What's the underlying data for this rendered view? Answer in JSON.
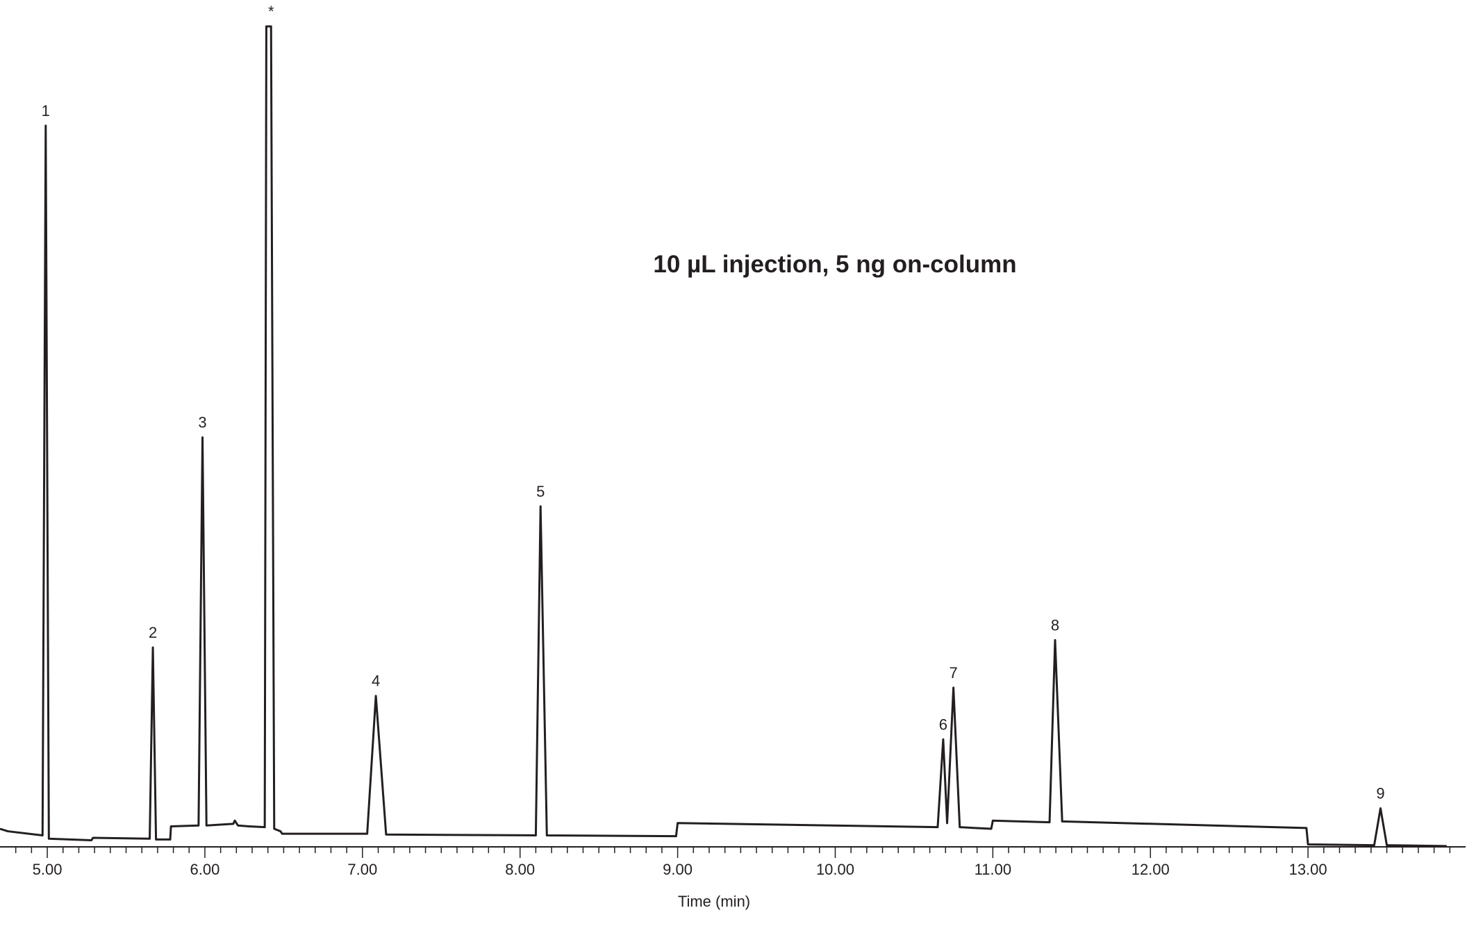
{
  "chart_data": {
    "type": "line",
    "title": "10 µL injection, 5 ng on-column",
    "x_label": "Time (min)",
    "color": "#231f20",
    "x": [
      4.7,
      4.75,
      4.97,
      4.99,
      5.01,
      5.28,
      5.29,
      5.65,
      5.67,
      5.69,
      5.78,
      5.785,
      5.96,
      5.985,
      6.01,
      6.18,
      6.19,
      6.21,
      6.28,
      6.38,
      6.39,
      6.42,
      6.44,
      6.48,
      6.49,
      7.03,
      7.085,
      7.15,
      8.1,
      8.13,
      8.17,
      8.99,
      9.0,
      10.65,
      10.685,
      10.71,
      10.75,
      10.79,
      10.99,
      11.0,
      11.36,
      11.395,
      11.44,
      12.99,
      13.0,
      13.42,
      13.46,
      13.5,
      13.88
    ],
    "values": [
      2.2,
      1.9,
      1.4,
      87.9,
      1.0,
      0.8,
      1.1,
      1.0,
      24.3,
      0.9,
      0.9,
      2.5,
      2.6,
      49.9,
      2.6,
      2.8,
      3.2,
      2.6,
      2.5,
      2.4,
      100,
      100,
      2.2,
      1.9,
      1.6,
      1.6,
      18.4,
      1.5,
      1.4,
      41.5,
      1.4,
      1.3,
      2.9,
      2.4,
      13.1,
      2.9,
      19.4,
      2.4,
      2.2,
      3.2,
      3.0,
      25.2,
      3.1,
      2.3,
      0.3,
      0.2,
      4.7,
      0.2,
      0.1
    ],
    "point_labels": [
      null,
      null,
      null,
      "1",
      null,
      null,
      null,
      null,
      "2",
      null,
      null,
      null,
      null,
      "3",
      null,
      null,
      null,
      null,
      null,
      null,
      null,
      "*",
      null,
      null,
      null,
      null,
      "4",
      null,
      null,
      "5",
      null,
      null,
      null,
      null,
      "6",
      null,
      "7",
      null,
      null,
      null,
      null,
      "8",
      null,
      null,
      null,
      null,
      "9",
      null,
      null
    ],
    "xlim": [
      4.7,
      14.0
    ],
    "ylim": [
      0,
      100
    ],
    "xticks": [
      {
        "value": 5,
        "label": "5.00"
      },
      {
        "value": 6,
        "label": "6.00"
      },
      {
        "value": 7,
        "label": "7.00"
      },
      {
        "value": 8,
        "label": "8.00"
      },
      {
        "value": 9,
        "label": "9.00"
      },
      {
        "value": 10,
        "label": "10.00"
      },
      {
        "value": 11,
        "label": "11.00"
      },
      {
        "value": 12,
        "label": "12.00"
      },
      {
        "value": 13,
        "label": "13.00"
      }
    ],
    "xminorticks": [
      4.8,
      4.9,
      5.1,
      5.2,
      5.3,
      5.4,
      5.5,
      5.6,
      5.7,
      5.8,
      5.9,
      6.1,
      6.2,
      6.3,
      6.4,
      6.5,
      6.6,
      6.7,
      6.8,
      6.9,
      7.1,
      7.2,
      7.3,
      7.4,
      7.5,
      7.6,
      7.7,
      7.8,
      7.9,
      8.1,
      8.2,
      8.3,
      8.4,
      8.5,
      8.6,
      8.7,
      8.8,
      8.9,
      9.1,
      9.2,
      9.3,
      9.4,
      9.5,
      9.6,
      9.7,
      9.8,
      9.9,
      10.1,
      10.2,
      10.3,
      10.4,
      10.5,
      10.6,
      10.7,
      10.8,
      10.9,
      11.1,
      11.2,
      11.3,
      11.4,
      11.5,
      11.6,
      11.7,
      11.8,
      11.9,
      12.1,
      12.2,
      12.3,
      12.4,
      12.5,
      12.6,
      12.7,
      12.8,
      12.9,
      13.1,
      13.2,
      13.3,
      13.4,
      13.5,
      13.6,
      13.7,
      13.8,
      13.9
    ]
  }
}
